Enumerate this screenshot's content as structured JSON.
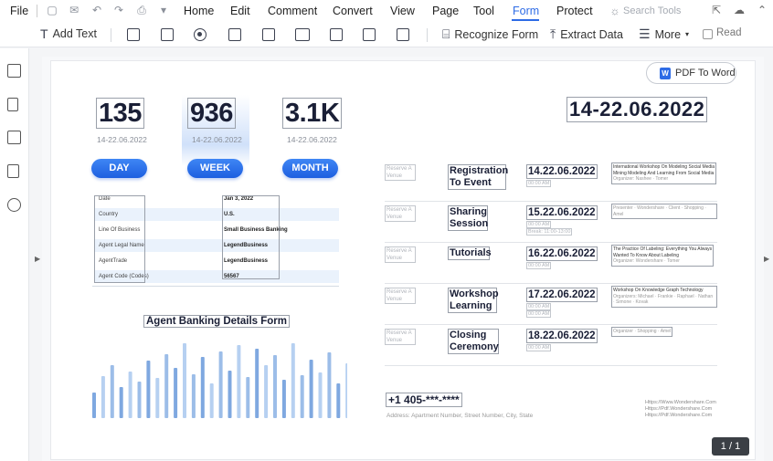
{
  "menu": {
    "file": "File",
    "items": [
      "Home",
      "Edit",
      "Comment",
      "Convert",
      "View",
      "Page",
      "Tool",
      "Form",
      "Protect"
    ],
    "active": "Form",
    "search_placeholder": "Search Tools"
  },
  "toolbar": {
    "add_text": "Add Text",
    "recognize_form": "Recognize Form",
    "extract_data": "Extract Data",
    "more": "More",
    "read": "Read"
  },
  "document": {
    "pdf_to_word": "PDF To Word",
    "stats": [
      {
        "value": "135",
        "date": "14-22.06.2022",
        "button": "DAY"
      },
      {
        "value": "936",
        "date": "14-22.06.2022",
        "button": "WEEK"
      },
      {
        "value": "3.1K",
        "date": "14-22.06.2022",
        "button": "MONTH"
      }
    ],
    "info_rows": [
      {
        "label": "Date",
        "value": "Jan 3, 2022"
      },
      {
        "label": "Country",
        "value": "U.S."
      },
      {
        "label": "Line Of Business",
        "value": "Small Business Banking"
      },
      {
        "label": "Agent Legal Name",
        "value": "LegendBusiness"
      },
      {
        "label": "AgentTrade",
        "value": "LegendBusiness"
      },
      {
        "label": "Agent Code (Codes)",
        "value": "56567"
      }
    ],
    "form_title": "Agent Banking Details Form",
    "bars": [
      28,
      46,
      58,
      34,
      51,
      40,
      63,
      44,
      70,
      55,
      82,
      48,
      67,
      38,
      73,
      52,
      80,
      45,
      76,
      58,
      69,
      42,
      82,
      47,
      64,
      50,
      72,
      38,
      60,
      35,
      49
    ],
    "big_date": "14-22.06.2022",
    "schedule": [
      {
        "placeholder": "Reserve A Venue",
        "name": "Registration To Event",
        "date": "14.22.06.2022",
        "sub": [
          "00:00 AM"
        ],
        "desc": [
          "International Workshop On Modeling Social Media",
          "Mining Modeling And Learning From Social Media"
        ],
        "desc_gray": "Organizer: Nashee · Tomer"
      },
      {
        "placeholder": "Reserve A Venue",
        "name": "Sharing Session",
        "date": "15.22.06.2022",
        "sub": [
          "00:00 AM",
          "Break: 11:00-13:00"
        ],
        "desc": [],
        "desc_gray": "Presenter · Wondershare · Client · Shopping · Amel"
      },
      {
        "placeholder": "Reserve A Venue",
        "name": "Tutorials",
        "date": "16.22.06.2022",
        "sub": [
          "00:00 AM"
        ],
        "desc": [
          "The Practice Of Labeling: Everything You Always",
          "Wanted To Know About Labeling"
        ],
        "desc_gray": "Organizer: Wondershare · Tomer"
      },
      {
        "placeholder": "Reserve A Venue",
        "name": "Workshop Learning",
        "date": "17.22.06.2022",
        "sub": [
          "00:00 AM",
          "00:00 AM"
        ],
        "desc": [
          "Workshop On Knowledge Graph Technology"
        ],
        "desc_gray": "Organizers: Michael · Frankie · Raphael · Nathan · Simone · Kovak"
      },
      {
        "placeholder": "Reserve A Venue",
        "name": "Closing Ceremony",
        "date": "18.22.06.2022",
        "sub": [
          "00:00 AM"
        ],
        "desc": [],
        "desc_gray": "Organizer · Shopping · Amel"
      }
    ],
    "phone": "+1 405-***-****",
    "address": "Address: Apartment Number, Street Number, City, State",
    "urls": [
      "Https://Www.Wondershare.Com",
      "Https://Pdf.Wondershare.Com",
      "Https://Pdf.Wondershare.Com"
    ],
    "page_indicator": "1 / 1"
  }
}
